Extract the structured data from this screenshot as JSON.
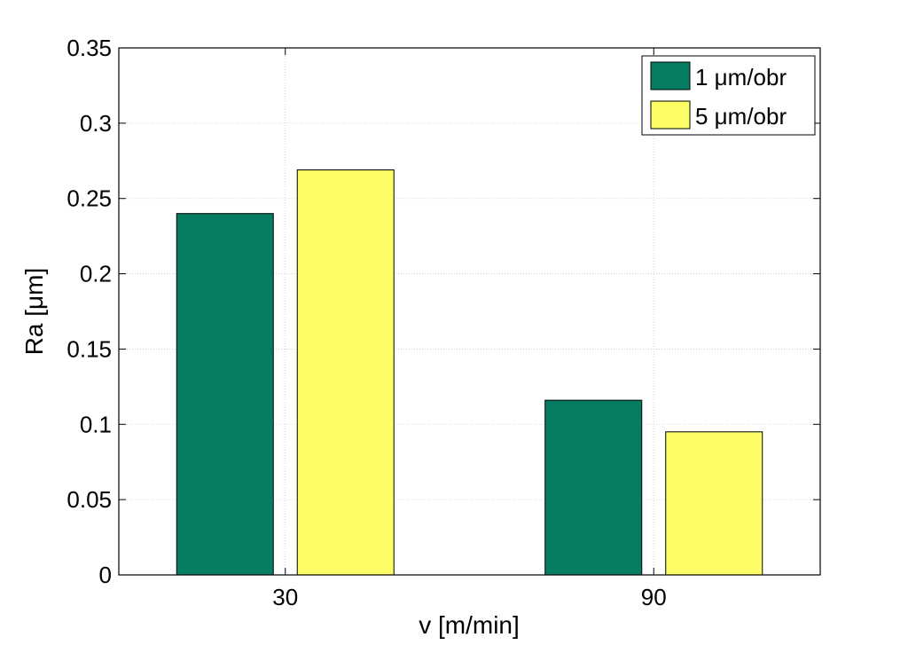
{
  "chart_data": {
    "type": "bar",
    "categories": [
      "30",
      "90"
    ],
    "series": [
      {
        "name": "1 μm/obr",
        "values": [
          0.24,
          0.116
        ],
        "color": "#067c62"
      },
      {
        "name": "5 μm/obr",
        "values": [
          0.269,
          0.095
        ],
        "color": "#fdfd66"
      }
    ],
    "xlabel": "v [m/min]",
    "ylabel": "Ra [μm]",
    "ylim": [
      0,
      0.35
    ],
    "yticks": [
      "0",
      "0.05",
      "0.1",
      "0.15",
      "0.2",
      "0.25",
      "0.3",
      "0.35"
    ],
    "grid": true,
    "legend_position": "top-right"
  }
}
